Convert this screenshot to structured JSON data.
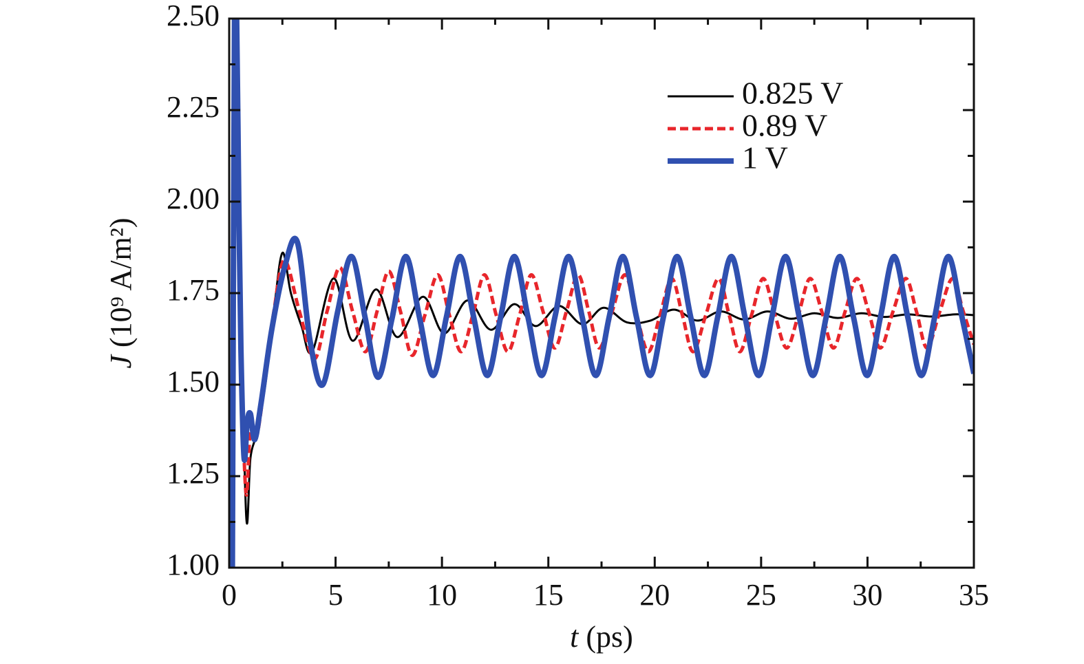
{
  "chart_data": {
    "type": "line",
    "xlabel": "t (ps)",
    "ylabel": "J (10⁹ A/m²)",
    "xlim": [
      0,
      35
    ],
    "ylim": [
      1,
      2.5
    ],
    "xticks": [
      0,
      5,
      10,
      15,
      20,
      25,
      30,
      35
    ],
    "yticks": [
      {
        "value": 1,
        "label": "1.00"
      },
      {
        "value": 1.25,
        "label": "1.25"
      },
      {
        "value": 1.5,
        "label": "1.50"
      },
      {
        "value": 1.75,
        "label": "1.75"
      },
      {
        "value": 2,
        "label": "2.00"
      },
      {
        "value": 2.25,
        "label": "2.25"
      },
      {
        "value": 2.5,
        "label": "2.50"
      }
    ],
    "minor_xticks": [
      2.5,
      7.5,
      12.5,
      17.5,
      22.5,
      27.5,
      32.5
    ],
    "minor_yticks": [
      1.125,
      1.375,
      1.625,
      1.875,
      2.125,
      2.375
    ],
    "legend": "upper right",
    "series": [
      {
        "name": "0.825 V",
        "color": "#000000",
        "dash": false,
        "width": 3,
        "x": [
          0.2,
          0.5,
          0.8,
          1.0,
          1.3,
          1.7,
          2.1,
          2.5,
          2.9,
          3.4,
          3.9,
          4.9,
          5.8,
          6.9,
          7.9,
          9.1,
          10.1,
          11.2,
          12.3,
          13.4,
          14.4,
          15.5,
          16.6,
          17.6,
          18.7,
          19.8,
          20.9,
          22.0,
          23.1,
          24.2,
          25.3,
          26.4,
          27.5,
          28.6,
          29.7,
          30.8,
          31.9,
          33.0,
          34.1,
          35
        ],
        "values": [
          2.3,
          1.8,
          1.14,
          1.3,
          1.37,
          1.5,
          1.7,
          1.86,
          1.75,
          1.66,
          1.59,
          1.79,
          1.62,
          1.76,
          1.63,
          1.74,
          1.64,
          1.73,
          1.65,
          1.72,
          1.66,
          1.715,
          1.665,
          1.71,
          1.67,
          1.675,
          1.705,
          1.675,
          1.7,
          1.678,
          1.7,
          1.68,
          1.695,
          1.682,
          1.695,
          1.685,
          1.692,
          1.686,
          1.692,
          1.69
        ]
      },
      {
        "name": "0.89 V",
        "color": "#e8262b",
        "dash": true,
        "width": 5,
        "x": [
          0.2,
          0.3,
          0.45,
          0.6,
          0.8,
          1.0,
          1.3,
          1.7,
          2.1,
          2.6,
          3.3,
          4.0,
          4.6,
          5.2,
          5.8,
          6.4,
          6.95,
          7.5,
          8.05,
          8.6,
          9.2,
          9.8,
          10.35,
          10.9,
          11.45,
          12.0,
          12.55,
          13.1,
          13.65,
          14.2,
          14.75,
          15.3,
          15.85,
          16.4,
          16.9,
          17.4,
          18.0,
          18.6,
          19.15,
          19.7,
          20.25,
          20.8,
          21.3,
          21.8,
          22.4,
          23.0,
          23.5,
          24.0,
          24.55,
          25.1,
          25.65,
          26.2,
          26.75,
          27.3,
          27.85,
          28.4,
          28.95,
          29.5,
          30.05,
          30.6,
          31.2,
          31.8,
          32.3,
          32.8,
          33.4,
          34.0,
          34.5,
          35
        ],
        "values": [
          2.35,
          2.5,
          2.0,
          1.5,
          1.2,
          1.38,
          1.36,
          1.52,
          1.7,
          1.84,
          1.7,
          1.57,
          1.7,
          1.82,
          1.7,
          1.59,
          1.7,
          1.81,
          1.7,
          1.58,
          1.69,
          1.8,
          1.69,
          1.59,
          1.69,
          1.8,
          1.69,
          1.59,
          1.69,
          1.8,
          1.7,
          1.6,
          1.7,
          1.8,
          1.7,
          1.6,
          1.7,
          1.8,
          1.69,
          1.59,
          1.69,
          1.79,
          1.69,
          1.59,
          1.69,
          1.79,
          1.69,
          1.59,
          1.69,
          1.79,
          1.69,
          1.6,
          1.69,
          1.79,
          1.7,
          1.6,
          1.7,
          1.79,
          1.7,
          1.6,
          1.7,
          1.79,
          1.7,
          1.6,
          1.7,
          1.79,
          1.7,
          1.61
        ]
      },
      {
        "name": "1 V",
        "color": "#3050b0",
        "dash": false,
        "width": 8,
        "x": [
          0.15,
          0.25,
          0.35,
          0.45,
          0.55,
          0.7,
          0.85,
          1.0,
          1.2,
          1.5,
          2.0,
          2.6,
          3.2,
          3.8,
          4.4,
          5.1,
          5.75,
          6.4,
          7.0,
          7.65,
          8.3,
          8.94,
          9.58,
          10.21,
          10.85,
          11.49,
          12.13,
          12.76,
          13.4,
          14.04,
          14.68,
          15.31,
          15.95,
          16.59,
          17.23,
          17.86,
          18.5,
          19.14,
          19.78,
          20.41,
          21.05,
          21.69,
          22.33,
          22.96,
          23.6,
          24.24,
          24.88,
          25.51,
          26.15,
          26.79,
          27.43,
          28.06,
          28.7,
          29.34,
          29.98,
          30.61,
          31.25,
          31.89,
          32.53,
          33.16,
          33.8,
          34.44,
          35
        ],
        "values": [
          1.0,
          2.5,
          2.5,
          2.0,
          1.6,
          1.3,
          1.4,
          1.42,
          1.35,
          1.45,
          1.65,
          1.82,
          1.89,
          1.62,
          1.5,
          1.7,
          1.85,
          1.68,
          1.52,
          1.68,
          1.85,
          1.685,
          1.525,
          1.685,
          1.85,
          1.685,
          1.525,
          1.685,
          1.85,
          1.685,
          1.525,
          1.685,
          1.85,
          1.685,
          1.525,
          1.685,
          1.85,
          1.685,
          1.525,
          1.685,
          1.85,
          1.685,
          1.525,
          1.685,
          1.85,
          1.685,
          1.525,
          1.685,
          1.85,
          1.685,
          1.525,
          1.685,
          1.85,
          1.685,
          1.525,
          1.685,
          1.85,
          1.685,
          1.525,
          1.685,
          1.85,
          1.685,
          1.53
        ]
      }
    ]
  }
}
